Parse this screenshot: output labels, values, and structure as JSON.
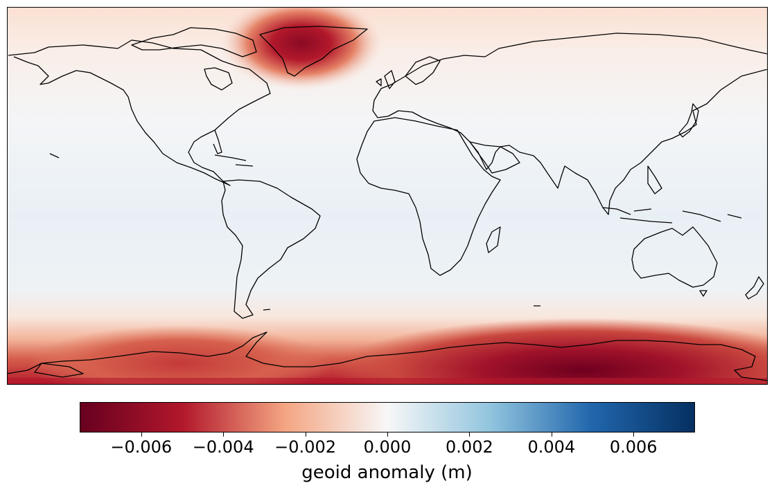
{
  "map": {
    "projection": "equirectangular",
    "field": "geoid anomaly",
    "colormap": "RdBu",
    "anomalies": [
      {
        "region": "Greenland",
        "sign": "negative",
        "level": "-0.007"
      },
      {
        "region": "East Antarctica",
        "sign": "negative",
        "level": "-0.0075"
      },
      {
        "region": "West Antarctica",
        "sign": "negative",
        "level": "-0.004"
      }
    ],
    "colors": {
      "min": "#67001f",
      "red": "#b2182b",
      "salmon": "#f4a582",
      "mid": "#f7f7f7",
      "lightblue": "#92c5de",
      "blue": "#2166ac",
      "max": "#053061"
    }
  },
  "colorbar": {
    "label": "geoid anomaly (m)",
    "range": [
      -0.0075,
      0.0075
    ],
    "ticks": [
      "−0.006",
      "−0.004",
      "−0.002",
      "0.000",
      "0.002",
      "0.004",
      "0.006"
    ],
    "tick_values": [
      -0.006,
      -0.004,
      -0.002,
      0.0,
      0.002,
      0.004,
      0.006
    ]
  }
}
